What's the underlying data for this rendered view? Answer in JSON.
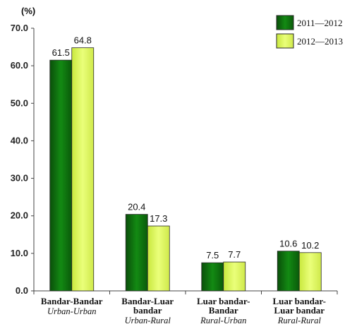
{
  "chart_data": {
    "type": "bar",
    "ylabel": "(%)",
    "ylim": [
      0,
      70
    ],
    "yticks": [
      "0.0",
      "10.0",
      "20.0",
      "30.0",
      "40.0",
      "50.0",
      "60.0",
      "70.0"
    ],
    "categories": [
      {
        "label_lines": [
          "Bandar-Bandar"
        ],
        "translation": "Urban-Urban"
      },
      {
        "label_lines": [
          "Bandar-Luar",
          "bandar"
        ],
        "translation": "Urban-Rural"
      },
      {
        "label_lines": [
          "Luar bandar-",
          "Bandar"
        ],
        "translation": "Rural-Urban"
      },
      {
        "label_lines": [
          "Luar bandar-",
          "Luar bandar"
        ],
        "translation": "Rural-Rural"
      }
    ],
    "series": [
      {
        "name": "2011—2012",
        "values": [
          61.5,
          20.4,
          7.5,
          10.6
        ],
        "labels": [
          "61.5",
          "20.4",
          "7.5",
          "10.6"
        ],
        "color": "#0d6a0d"
      },
      {
        "name": "2012—2013",
        "values": [
          64.8,
          17.3,
          7.7,
          10.2
        ],
        "labels": [
          "64.8",
          "17.3",
          "7.7",
          "10.2"
        ],
        "color": "#dcf55a"
      }
    ],
    "legend_position": "top-right",
    "grid": false
  }
}
